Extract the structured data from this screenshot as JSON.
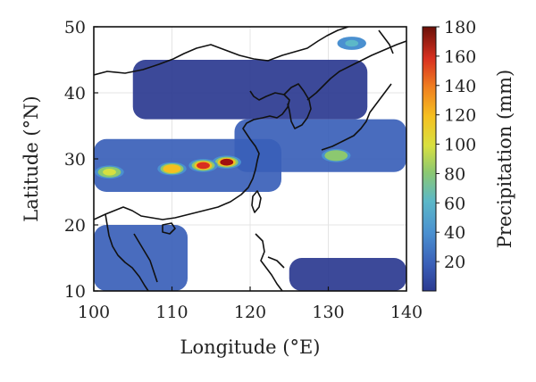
{
  "chart_data": {
    "type": "heatmap",
    "title": "",
    "xlabel": "Longitude (°E)",
    "ylabel": "Latitude (°N)",
    "xlim": [
      100,
      140
    ],
    "ylim": [
      10,
      50
    ],
    "xticks": [
      "100",
      "110",
      "120",
      "130",
      "140"
    ],
    "yticks": [
      "10",
      "20",
      "30",
      "40",
      "50"
    ],
    "colorbar": {
      "label": "Precipitation (mm)",
      "range": [
        0,
        180
      ],
      "ticks": [
        "20",
        "40",
        "60",
        "80",
        "100",
        "120",
        "140",
        "160",
        "180"
      ],
      "colors": [
        "#2b3990",
        "#3a5fb8",
        "#4a90d0",
        "#5cb8c8",
        "#8cc870",
        "#d8e040",
        "#f5c020",
        "#f08020",
        "#d83020",
        "#a01010",
        "#6a1008"
      ]
    },
    "rain_regions": [
      {
        "lon": [
          100,
          124
        ],
        "lat": [
          25,
          33
        ],
        "mm": 15
      },
      {
        "lon": [
          118,
          140
        ],
        "lat": [
          28,
          36
        ],
        "mm": 12
      },
      {
        "lon": [
          105,
          135
        ],
        "lat": [
          36,
          45
        ],
        "mm": 8
      },
      {
        "lon": [
          100,
          112
        ],
        "lat": [
          10,
          20
        ],
        "mm": 10
      },
      {
        "lon": [
          125,
          140
        ],
        "lat": [
          10,
          15
        ],
        "mm": 8
      }
    ],
    "hotspots": [
      {
        "lon": 117,
        "lat": 29.5,
        "mm": 170
      },
      {
        "lon": 114,
        "lat": 29,
        "mm": 150
      },
      {
        "lon": 110,
        "lat": 28.5,
        "mm": 110
      },
      {
        "lon": 102,
        "lat": 28,
        "mm": 90
      },
      {
        "lon": 131,
        "lat": 30.5,
        "mm": 80
      },
      {
        "lon": 133,
        "lat": 47.5,
        "mm": 60
      }
    ]
  }
}
